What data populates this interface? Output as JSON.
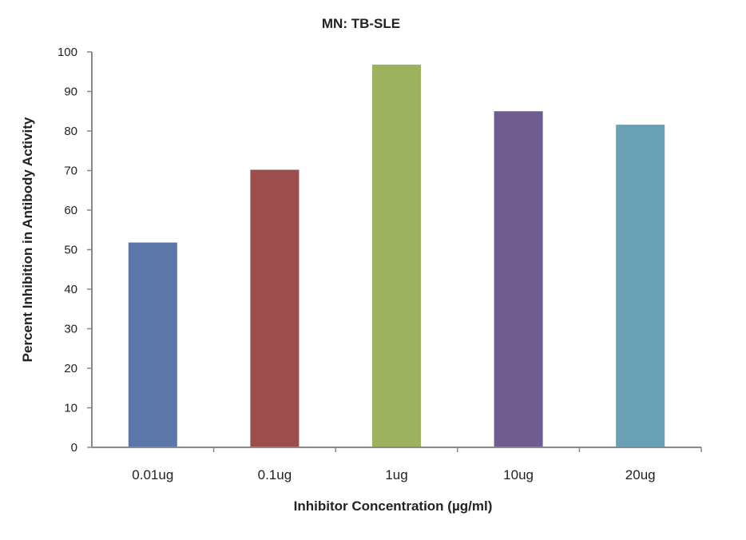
{
  "chart_data": {
    "type": "bar",
    "title": "MN: TB-SLE",
    "xlabel": "Inhibitor Concentration (µg/ml)",
    "ylabel": "Percent Inhibition in Antibody Activity",
    "categories": [
      "0.01ug",
      "0.1ug",
      "1ug",
      "10ug",
      "20ug"
    ],
    "values": [
      51.8,
      70.2,
      96.8,
      85.0,
      81.6
    ],
    "colors": [
      "#5b76a8",
      "#9c4e4c",
      "#9cb25e",
      "#6f5d8f",
      "#6aa0b4"
    ],
    "ylim": [
      0,
      100
    ],
    "yticks": [
      0,
      10,
      20,
      30,
      40,
      50,
      60,
      70,
      80,
      90,
      100
    ],
    "grid": false,
    "legend": "none"
  }
}
